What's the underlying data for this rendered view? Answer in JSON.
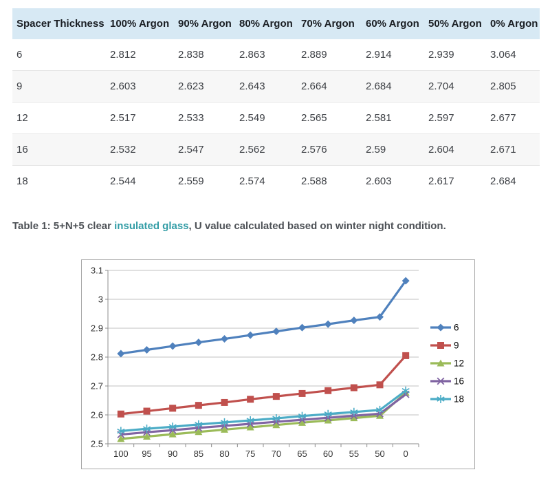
{
  "table": {
    "headers": [
      "Spacer Thickness",
      "100% Argon",
      "90% Argon",
      "80% Argon",
      "70% Argon",
      "60% Argon",
      "50% Argon",
      "0% Argon"
    ],
    "rows": [
      {
        "label": "6",
        "values": [
          "2.812",
          "2.838",
          "2.863",
          "2.889",
          "2.914",
          "2.939",
          "3.064"
        ]
      },
      {
        "label": "9",
        "values": [
          "2.603",
          "2.623",
          "2.643",
          "2.664",
          "2.684",
          "2.704",
          "2.805"
        ]
      },
      {
        "label": "12",
        "values": [
          "2.517",
          "2.533",
          "2.549",
          "2.565",
          "2.581",
          "2.597",
          "2.677"
        ]
      },
      {
        "label": "16",
        "values": [
          "2.532",
          "2.547",
          "2.562",
          "2.576",
          "2.59",
          "2.604",
          "2.671"
        ]
      },
      {
        "label": "18",
        "values": [
          "2.544",
          "2.559",
          "2.574",
          "2.588",
          "2.603",
          "2.617",
          "2.684"
        ]
      }
    ]
  },
  "caption": {
    "prefix": "Table 1: 5+N+5 clear ",
    "link": "insulated glass",
    "suffix": ", U value calculated based on winter night condition."
  },
  "chart_data": {
    "type": "line",
    "title": "",
    "xlabel": "",
    "ylabel": "",
    "x": [
      100,
      95,
      90,
      85,
      80,
      75,
      70,
      65,
      60,
      55,
      50,
      0
    ],
    "series": [
      {
        "name": "6",
        "color": "#4f81bd",
        "marker": "diamond",
        "values": [
          2.812,
          2.825,
          2.838,
          2.851,
          2.863,
          2.876,
          2.889,
          2.902,
          2.914,
          2.927,
          2.939,
          3.064
        ]
      },
      {
        "name": "9",
        "color": "#c0504d",
        "marker": "square",
        "values": [
          2.603,
          2.613,
          2.623,
          2.633,
          2.643,
          2.654,
          2.664,
          2.674,
          2.684,
          2.694,
          2.704,
          2.805
        ]
      },
      {
        "name": "12",
        "color": "#9bbb59",
        "marker": "triangle",
        "values": [
          2.517,
          2.525,
          2.533,
          2.541,
          2.549,
          2.557,
          2.565,
          2.573,
          2.581,
          2.589,
          2.597,
          2.677
        ]
      },
      {
        "name": "16",
        "color": "#8064a2",
        "marker": "x",
        "values": [
          2.532,
          2.54,
          2.547,
          2.555,
          2.562,
          2.569,
          2.576,
          2.583,
          2.59,
          2.597,
          2.604,
          2.671
        ]
      },
      {
        "name": "18",
        "color": "#4bacc6",
        "marker": "asterisk",
        "values": [
          2.544,
          2.552,
          2.559,
          2.567,
          2.574,
          2.581,
          2.588,
          2.596,
          2.603,
          2.61,
          2.617,
          2.684
        ]
      }
    ],
    "ylim": [
      2.5,
      3.1
    ],
    "yticks": [
      2.5,
      2.6,
      2.7,
      2.8,
      2.9,
      3,
      3.1
    ],
    "grid": true,
    "legend_position": "right"
  },
  "colors": {
    "header_bg": "#d7e9f4",
    "shaded_row_bg": "#f7f7f7",
    "row_border": "#e6e6e6",
    "link": "#339da6",
    "gridline": "#c0c0c0",
    "axis": "#8c8c8c",
    "chart_border": "#a8a8a8",
    "tick_text": "#333333"
  }
}
